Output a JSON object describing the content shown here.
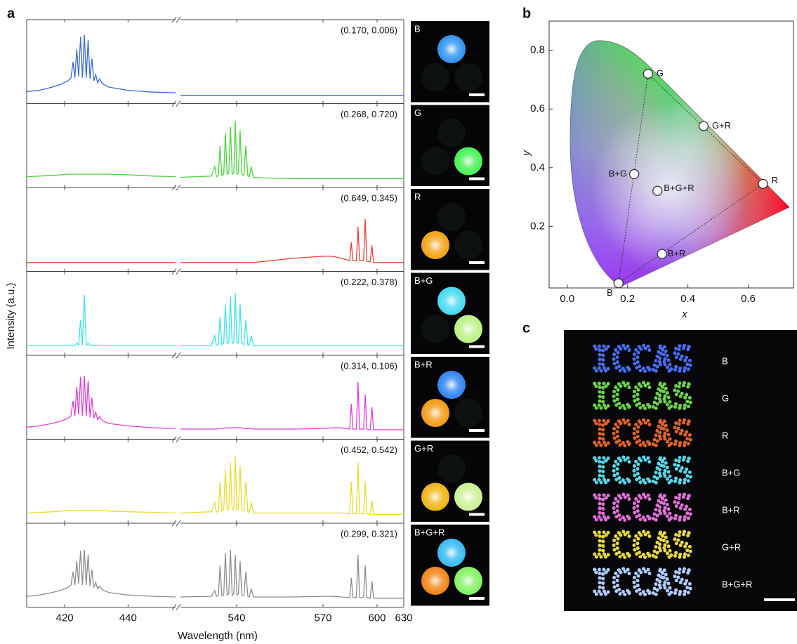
{
  "panel_labels": [
    "a",
    "b",
    "c"
  ],
  "chart_data": [
    {
      "type": "spectra",
      "x_label": "Wavelength (nm)",
      "y_label": "Intensity (a.u.)",
      "xlim_left": [
        408,
        455
      ],
      "xticks_left": [
        420,
        440
      ],
      "xlim_right": [
        520,
        630
      ],
      "xticks_right": [
        540,
        570,
        600,
        630
      ],
      "ylim": [
        0,
        1
      ],
      "x_left": [
        408,
        412,
        416,
        419,
        421,
        422,
        422.6,
        423.2,
        423.8,
        424.4,
        425,
        425.6,
        426.2,
        426.8,
        427.4,
        428,
        428.6,
        429.2,
        429.8,
        430.4,
        431,
        432,
        434,
        440,
        448,
        455
      ],
      "x_right": [
        520,
        531,
        532.2,
        532.8,
        533.5,
        534.1,
        534.7,
        535.4,
        536,
        536.6,
        537.2,
        537.8,
        538.4,
        539,
        539.5,
        540.1,
        540.6,
        541.2,
        541.8,
        542.5,
        543.2,
        543.9,
        544.4,
        545.1,
        545.8,
        550,
        560,
        570,
        575,
        580,
        584.8,
        585.7,
        586.6,
        588.5,
        589.4,
        590.3,
        592.5,
        593.4,
        594.3,
        596.2,
        597.1,
        598,
        600,
        630
      ],
      "panels": [
        {
          "label": "B",
          "coords": "(0.170, 0.006)",
          "color": "#3a68d8",
          "left": [
            0.08,
            0.1,
            0.15,
            0.2,
            0.25,
            0.3,
            0.55,
            0.3,
            0.75,
            0.32,
            0.95,
            0.3,
            0.98,
            0.3,
            0.9,
            0.28,
            0.6,
            0.25,
            0.35,
            0.22,
            0.28,
            0.2,
            0.15,
            0.1,
            0.07,
            0.06
          ],
          "right": [
            0.02,
            0.02,
            0.02,
            0.02,
            0.02,
            0.02,
            0.02,
            0.02,
            0.02,
            0.02,
            0.02,
            0.02,
            0.02,
            0.02,
            0.02,
            0.02,
            0.02,
            0.02,
            0.02,
            0.02,
            0.02,
            0.02,
            0.02,
            0.02,
            0.02,
            0.02,
            0.02,
            0.02,
            0.02,
            0.02,
            0.02,
            0.02,
            0.02,
            0.02,
            0.02,
            0.02,
            0.02,
            0.02,
            0.02,
            0.02,
            0.02,
            0.02,
            0.02,
            0.02
          ]
        },
        {
          "label": "G",
          "coords": "(0.268, 0.720)",
          "color": "#4cd23c",
          "left": [
            0.06,
            0.07,
            0.08,
            0.09,
            0.1,
            0.1,
            0.1,
            0.1,
            0.1,
            0.1,
            0.1,
            0.1,
            0.1,
            0.1,
            0.1,
            0.1,
            0.1,
            0.1,
            0.1,
            0.1,
            0.1,
            0.1,
            0.1,
            0.09,
            0.07,
            0.06
          ],
          "right": [
            0.05,
            0.07,
            0.22,
            0.06,
            0.08,
            0.55,
            0.08,
            0.1,
            0.75,
            0.1,
            0.12,
            0.85,
            0.1,
            0.12,
            0.95,
            0.1,
            0.12,
            0.8,
            0.1,
            0.08,
            0.55,
            0.07,
            0.06,
            0.22,
            0.05,
            0.04,
            0.03,
            0.03,
            0.03,
            0.03,
            0.03,
            0.03,
            0.03,
            0.03,
            0.03,
            0.03,
            0.03,
            0.03,
            0.03,
            0.03,
            0.03,
            0.03,
            0.03,
            0.03
          ]
        },
        {
          "label": "R",
          "coords": "(0.649, 0.345)",
          "color": "#e0413a",
          "left": [
            0.03,
            0.03,
            0.03,
            0.03,
            0.03,
            0.03,
            0.03,
            0.03,
            0.03,
            0.03,
            0.03,
            0.03,
            0.03,
            0.03,
            0.03,
            0.03,
            0.03,
            0.03,
            0.03,
            0.03,
            0.03,
            0.03,
            0.03,
            0.03,
            0.03,
            0.03
          ],
          "right": [
            0.03,
            0.03,
            0.03,
            0.03,
            0.03,
            0.03,
            0.03,
            0.03,
            0.03,
            0.03,
            0.03,
            0.03,
            0.03,
            0.03,
            0.03,
            0.03,
            0.03,
            0.03,
            0.03,
            0.03,
            0.03,
            0.03,
            0.03,
            0.03,
            0.03,
            0.05,
            0.1,
            0.13,
            0.13,
            0.1,
            0.06,
            0.35,
            0.06,
            0.06,
            0.6,
            0.06,
            0.06,
            0.72,
            0.05,
            0.04,
            0.3,
            0.03,
            0.03,
            0.03
          ]
        },
        {
          "label": "B+G",
          "coords": "(0.222, 0.378)",
          "color": "#3ee0e4",
          "left": [
            0.04,
            0.04,
            0.04,
            0.04,
            0.05,
            0.05,
            0.05,
            0.05,
            0.08,
            0.05,
            0.45,
            0.05,
            0.85,
            0.05,
            0.08,
            0.05,
            0.05,
            0.05,
            0.05,
            0.05,
            0.05,
            0.04,
            0.04,
            0.04,
            0.04,
            0.04
          ],
          "right": [
            0.04,
            0.05,
            0.2,
            0.05,
            0.06,
            0.5,
            0.06,
            0.08,
            0.7,
            0.08,
            0.1,
            0.82,
            0.08,
            0.1,
            0.88,
            0.08,
            0.1,
            0.7,
            0.08,
            0.06,
            0.45,
            0.05,
            0.05,
            0.2,
            0.04,
            0.04,
            0.04,
            0.04,
            0.04,
            0.04,
            0.04,
            0.04,
            0.04,
            0.04,
            0.04,
            0.04,
            0.04,
            0.04,
            0.04,
            0.04,
            0.04,
            0.04,
            0.04,
            0.04
          ]
        },
        {
          "label": "B+R",
          "coords": "(0.314, 0.106)",
          "color": "#e03ed8",
          "left": [
            0.08,
            0.1,
            0.14,
            0.18,
            0.22,
            0.26,
            0.5,
            0.26,
            0.72,
            0.28,
            0.88,
            0.26,
            0.9,
            0.26,
            0.82,
            0.24,
            0.55,
            0.22,
            0.32,
            0.2,
            0.25,
            0.18,
            0.14,
            0.1,
            0.07,
            0.06
          ],
          "right": [
            0.05,
            0.05,
            0.05,
            0.05,
            0.06,
            0.06,
            0.06,
            0.06,
            0.07,
            0.07,
            0.07,
            0.07,
            0.07,
            0.07,
            0.07,
            0.07,
            0.07,
            0.07,
            0.07,
            0.06,
            0.06,
            0.06,
            0.06,
            0.06,
            0.05,
            0.05,
            0.05,
            0.06,
            0.07,
            0.07,
            0.05,
            0.45,
            0.05,
            0.05,
            0.8,
            0.05,
            0.05,
            0.6,
            0.05,
            0.04,
            0.4,
            0.04,
            0.04,
            0.04
          ]
        },
        {
          "label": "G+R",
          "coords": "(0.452, 0.542)",
          "color": "#e6dc2e",
          "left": [
            0.05,
            0.06,
            0.07,
            0.08,
            0.09,
            0.09,
            0.09,
            0.09,
            0.09,
            0.09,
            0.09,
            0.09,
            0.09,
            0.09,
            0.09,
            0.09,
            0.09,
            0.09,
            0.09,
            0.09,
            0.09,
            0.09,
            0.08,
            0.07,
            0.06,
            0.05
          ],
          "right": [
            0.05,
            0.07,
            0.22,
            0.06,
            0.08,
            0.55,
            0.08,
            0.1,
            0.75,
            0.1,
            0.12,
            0.85,
            0.1,
            0.12,
            0.95,
            0.1,
            0.12,
            0.8,
            0.1,
            0.08,
            0.55,
            0.07,
            0.06,
            0.22,
            0.05,
            0.05,
            0.05,
            0.05,
            0.05,
            0.05,
            0.04,
            0.55,
            0.04,
            0.04,
            0.85,
            0.04,
            0.04,
            0.55,
            0.04,
            0.03,
            0.25,
            0.03,
            0.03,
            0.03
          ]
        },
        {
          "label": "B+G+R",
          "coords": "(0.299, 0.321)",
          "color": "#8c8c8c",
          "left": [
            0.06,
            0.08,
            0.12,
            0.16,
            0.2,
            0.24,
            0.45,
            0.24,
            0.62,
            0.26,
            0.78,
            0.24,
            0.8,
            0.24,
            0.72,
            0.22,
            0.48,
            0.2,
            0.28,
            0.18,
            0.22,
            0.16,
            0.12,
            0.08,
            0.06,
            0.05
          ],
          "right": [
            0.05,
            0.06,
            0.15,
            0.06,
            0.07,
            0.55,
            0.07,
            0.08,
            0.75,
            0.08,
            0.1,
            0.8,
            0.08,
            0.1,
            0.72,
            0.08,
            0.1,
            0.62,
            0.08,
            0.07,
            0.45,
            0.06,
            0.05,
            0.18,
            0.05,
            0.05,
            0.05,
            0.06,
            0.06,
            0.05,
            0.04,
            0.35,
            0.04,
            0.04,
            0.72,
            0.04,
            0.04,
            0.55,
            0.04,
            0.03,
            0.3,
            0.03,
            0.03,
            0.03
          ]
        }
      ]
    },
    {
      "type": "scatter",
      "x_label": "x",
      "y_label": "y",
      "xlim": [
        -0.06,
        0.75
      ],
      "ylim": [
        -0.01,
        0.9
      ],
      "xticks": [
        {
          "value": 0,
          "label": "0.0"
        },
        0.2,
        0.4,
        0.6
      ],
      "yticks": [
        0.2,
        0.4,
        0.6,
        0.8
      ],
      "point_labels": [
        "B",
        "G",
        "R",
        "B+G",
        "B+R",
        "G+R",
        "B+G+R"
      ],
      "x": [
        0.17,
        0.268,
        0.649,
        0.222,
        0.314,
        0.452,
        0.299
      ],
      "values": [
        0.006,
        0.72,
        0.345,
        0.378,
        0.106,
        0.542,
        0.321
      ]
    }
  ],
  "photo_c": {
    "text": "ICCAS",
    "rows": [
      {
        "label": "B",
        "color": "#4a6cf0"
      },
      {
        "label": "G",
        "color": "#6cd34a"
      },
      {
        "label": "R",
        "color": "#e0642a"
      },
      {
        "label": "B+G",
        "color": "#5ad6e6"
      },
      {
        "label": "B+R",
        "color": "#e070d8"
      },
      {
        "label": "G+R",
        "color": "#e8d840"
      },
      {
        "label": "B+G+R",
        "color": "#b0ccff"
      }
    ]
  }
}
